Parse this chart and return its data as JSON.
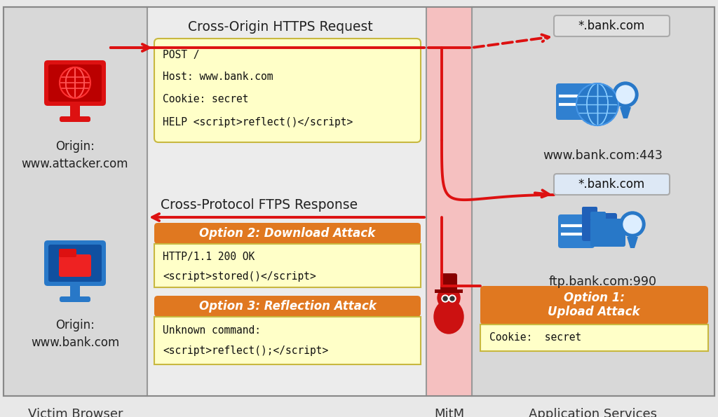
{
  "bg_color": "#e8e8e8",
  "light_yellow": "#ffffc8",
  "orange": "#e07820",
  "red": "#dd1111",
  "blue": "#2878c8",
  "dark_gray": "#222222",
  "pink_bg": "#f5c0c0",
  "panel_gray": "#dcdcdc",
  "mid_gray": "#e8e8e8",
  "code_box1_lines": [
    "POST /",
    "Host: www.bank.com",
    "Cookie: secret",
    "HELP <script>reflect()</script>"
  ],
  "code_box2_lines": [
    "HTTP/1.1 200 OK",
    "<script>stored()</script>"
  ],
  "code_box3_lines": [
    "Unknown command:",
    "<script>reflect();</script>"
  ],
  "upload_line": "Cookie:  secret",
  "option1_label": "Option 1:\nUpload Attack",
  "option2_label": "Option 2: Download Attack",
  "option3_label": "Option 3: Reflection Attack",
  "www_bank_label": "www.bank.com:443",
  "ftp_bank_label": "ftp.bank.com:990",
  "cert_label1": "*.bank.com",
  "cert_label2": "*.bank.com",
  "top_request_label": "Cross-Origin HTTPS Request",
  "bottom_response_label": "Cross-Protocol FTPS Response",
  "origin1_label": "Origin:\nwww.attacker.com",
  "origin2_label": "Origin:\nwww.bank.com",
  "label_victim": "Victim Browser",
  "label_mitm": "MitM",
  "label_app": "Application Services"
}
